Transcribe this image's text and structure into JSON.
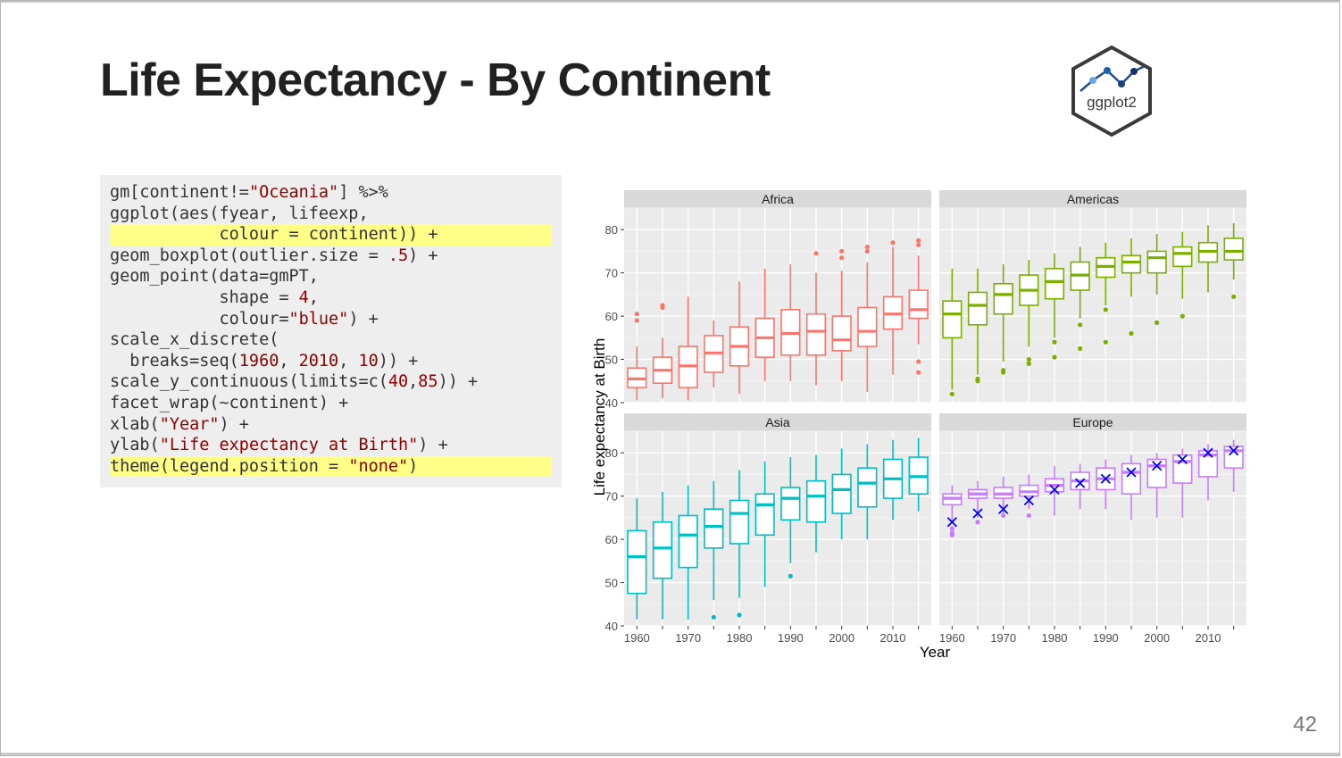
{
  "slide": {
    "title": "Life Expectancy - By Continent",
    "page_number": "42",
    "logo_text": "ggplot2"
  },
  "code": {
    "lines": [
      {
        "highlight": false,
        "tokens": [
          {
            "t": "gm[continent!="
          },
          {
            "t": "\"Oceania\"",
            "k": "str"
          },
          {
            "t": "] %>%"
          }
        ]
      },
      {
        "highlight": false,
        "tokens": [
          {
            "t": "ggplot(aes(fyear, lifeexp,"
          }
        ]
      },
      {
        "highlight": true,
        "tokens": [
          {
            "t": "           colour = continent)) +"
          }
        ]
      },
      {
        "highlight": false,
        "tokens": [
          {
            "t": "geom_boxplot(outlier.size = "
          },
          {
            "t": ".5",
            "k": "num"
          },
          {
            "t": ") +"
          }
        ]
      },
      {
        "highlight": false,
        "tokens": [
          {
            "t": "geom_point(data=gmPT,"
          }
        ]
      },
      {
        "highlight": false,
        "tokens": [
          {
            "t": "           shape = "
          },
          {
            "t": "4",
            "k": "num"
          },
          {
            "t": ","
          }
        ]
      },
      {
        "highlight": false,
        "tokens": [
          {
            "t": "           colour="
          },
          {
            "t": "\"blue\"",
            "k": "str"
          },
          {
            "t": ") +"
          }
        ]
      },
      {
        "highlight": false,
        "tokens": [
          {
            "t": "scale_x_discrete("
          }
        ]
      },
      {
        "highlight": false,
        "tokens": [
          {
            "t": "  breaks=seq("
          },
          {
            "t": "1960",
            "k": "num"
          },
          {
            "t": ", "
          },
          {
            "t": "2010",
            "k": "num"
          },
          {
            "t": ", "
          },
          {
            "t": "10",
            "k": "num"
          },
          {
            "t": ")) +"
          }
        ]
      },
      {
        "highlight": false,
        "tokens": [
          {
            "t": "scale_y_continuous(limits=c("
          },
          {
            "t": "40",
            "k": "num"
          },
          {
            "t": ","
          },
          {
            "t": "85",
            "k": "num"
          },
          {
            "t": ")) +"
          }
        ]
      },
      {
        "highlight": false,
        "tokens": [
          {
            "t": "facet_wrap(~continent) +"
          }
        ]
      },
      {
        "highlight": false,
        "tokens": [
          {
            "t": "xlab("
          },
          {
            "t": "\"Year\"",
            "k": "str"
          },
          {
            "t": ") +"
          }
        ]
      },
      {
        "highlight": false,
        "tokens": [
          {
            "t": "ylab("
          },
          {
            "t": "\"Life expectancy at Birth\"",
            "k": "str"
          },
          {
            "t": ") +"
          }
        ]
      },
      {
        "highlight": true,
        "tokens": [
          {
            "t": "theme(legend.position = "
          },
          {
            "t": "\"none\"",
            "k": "str"
          },
          {
            "t": ")"
          }
        ]
      }
    ]
  },
  "chart_data": {
    "type": "boxplot",
    "xlabel": "Year",
    "ylabel": "Life expectancy at Birth",
    "ylim": [
      40,
      85
    ],
    "y_ticks": [
      40,
      50,
      60,
      70,
      80
    ],
    "x_categories": [
      1960,
      1965,
      1970,
      1975,
      1980,
      1985,
      1990,
      1995,
      2000,
      2005,
      2010,
      2015
    ],
    "x_tick_labels": [
      "1960",
      "1970",
      "1980",
      "1990",
      "2000",
      "2010"
    ],
    "grid": true,
    "legend": "none",
    "panels": [
      {
        "name": "Africa",
        "color": "#F8766D",
        "boxes": [
          {
            "x": 1960,
            "min": 40.5,
            "q1": 43.5,
            "median": 45.5,
            "q3": 48,
            "max": 53
          },
          {
            "x": 1965,
            "min": 41,
            "q1": 44.5,
            "median": 47.5,
            "q3": 50.5,
            "max": 55
          },
          {
            "x": 1970,
            "min": 40.5,
            "q1": 43.5,
            "median": 48.5,
            "q3": 53,
            "max": 64.5
          },
          {
            "x": 1975,
            "min": 43.5,
            "q1": 47,
            "median": 51.5,
            "q3": 55.5,
            "max": 59
          },
          {
            "x": 1980,
            "min": 42,
            "q1": 48.5,
            "median": 53,
            "q3": 57.5,
            "max": 68
          },
          {
            "x": 1985,
            "min": 45,
            "q1": 50.5,
            "median": 55,
            "q3": 59.5,
            "max": 71
          },
          {
            "x": 1990,
            "min": 45,
            "q1": 51,
            "median": 56,
            "q3": 61.5,
            "max": 72
          },
          {
            "x": 1995,
            "min": 44,
            "q1": 51,
            "median": 56.5,
            "q3": 60.5,
            "max": 70
          },
          {
            "x": 2000,
            "min": 45,
            "q1": 52,
            "median": 54.5,
            "q3": 60,
            "max": 70.5
          },
          {
            "x": 2005,
            "min": 42.5,
            "q1": 53,
            "median": 56.5,
            "q3": 62,
            "max": 72.5
          },
          {
            "x": 2010,
            "min": 46.5,
            "q1": 57,
            "median": 60.5,
            "q3": 64.5,
            "max": 76
          },
          {
            "x": 2015,
            "min": 53.5,
            "q1": 59.5,
            "median": 61.5,
            "q3": 66,
            "max": 74
          }
        ],
        "outliers": [
          {
            "x": 1960,
            "y": 60.5
          },
          {
            "x": 1960,
            "y": 59
          },
          {
            "x": 1965,
            "y": 62.5
          },
          {
            "x": 1965,
            "y": 62
          },
          {
            "x": 1995,
            "y": 74.5
          },
          {
            "x": 2000,
            "y": 75
          },
          {
            "x": 2000,
            "y": 73.5
          },
          {
            "x": 2005,
            "y": 76
          },
          {
            "x": 2005,
            "y": 75
          },
          {
            "x": 2010,
            "y": 77
          },
          {
            "x": 2015,
            "y": 77.5
          },
          {
            "x": 2015,
            "y": 76.5
          },
          {
            "x": 2015,
            "y": 49.5
          },
          {
            "x": 2015,
            "y": 47
          }
        ],
        "markers": []
      },
      {
        "name": "Americas",
        "color": "#7CAE00",
        "boxes": [
          {
            "x": 1960,
            "min": 43,
            "q1": 55,
            "median": 60.5,
            "q3": 63.5,
            "max": 71
          },
          {
            "x": 1965,
            "min": 46.5,
            "q1": 58,
            "median": 62.5,
            "q3": 65.5,
            "max": 71
          },
          {
            "x": 1970,
            "min": 49.5,
            "q1": 60.5,
            "median": 65,
            "q3": 67.5,
            "max": 72
          },
          {
            "x": 1975,
            "min": 53,
            "q1": 62.5,
            "median": 66,
            "q3": 69.5,
            "max": 73
          },
          {
            "x": 1980,
            "min": 55,
            "q1": 64,
            "median": 68,
            "q3": 71,
            "max": 74.5
          },
          {
            "x": 1985,
            "min": 59.5,
            "q1": 66,
            "median": 69.5,
            "q3": 72.5,
            "max": 76
          },
          {
            "x": 1990,
            "min": 62.5,
            "q1": 69,
            "median": 71.5,
            "q3": 73.5,
            "max": 77
          },
          {
            "x": 1995,
            "min": 64.5,
            "q1": 70,
            "median": 72.5,
            "q3": 74,
            "max": 78
          },
          {
            "x": 2000,
            "min": 65,
            "q1": 70,
            "median": 73.5,
            "q3": 75,
            "max": 79
          },
          {
            "x": 2005,
            "min": 64,
            "q1": 71.5,
            "median": 74.5,
            "q3": 76,
            "max": 79.5
          },
          {
            "x": 2010,
            "min": 65.5,
            "q1": 72.5,
            "median": 75,
            "q3": 77,
            "max": 81
          },
          {
            "x": 2015,
            "min": 68.5,
            "q1": 73,
            "median": 75,
            "q3": 78,
            "max": 81.5
          }
        ],
        "outliers": [
          {
            "x": 1960,
            "y": 42
          },
          {
            "x": 1965,
            "y": 45.5
          },
          {
            "x": 1965,
            "y": 45
          },
          {
            "x": 1970,
            "y": 47.5
          },
          {
            "x": 1970,
            "y": 47
          },
          {
            "x": 1975,
            "y": 50
          },
          {
            "x": 1975,
            "y": 49
          },
          {
            "x": 1980,
            "y": 54
          },
          {
            "x": 1980,
            "y": 50.5
          },
          {
            "x": 1985,
            "y": 58
          },
          {
            "x": 1985,
            "y": 52.5
          },
          {
            "x": 1990,
            "y": 61.5
          },
          {
            "x": 1990,
            "y": 54
          },
          {
            "x": 1995,
            "y": 56
          },
          {
            "x": 2000,
            "y": 58.5
          },
          {
            "x": 2005,
            "y": 60
          },
          {
            "x": 2015,
            "y": 64.5
          }
        ],
        "markers": []
      },
      {
        "name": "Asia",
        "color": "#00BFC4",
        "boxes": [
          {
            "x": 1960,
            "min": 41.5,
            "q1": 47.5,
            "median": 56,
            "q3": 62,
            "max": 69.5
          },
          {
            "x": 1965,
            "min": 41.5,
            "q1": 51,
            "median": 58,
            "q3": 64,
            "max": 71
          },
          {
            "x": 1970,
            "min": 41.5,
            "q1": 53.5,
            "median": 61,
            "q3": 65.5,
            "max": 72.5
          },
          {
            "x": 1975,
            "min": 46,
            "q1": 58,
            "median": 63,
            "q3": 67,
            "max": 73.5
          },
          {
            "x": 1980,
            "min": 46.5,
            "q1": 59,
            "median": 66,
            "q3": 69,
            "max": 76
          },
          {
            "x": 1985,
            "min": 49,
            "q1": 61,
            "median": 68,
            "q3": 70.5,
            "max": 78
          },
          {
            "x": 1990,
            "min": 54.5,
            "q1": 64.5,
            "median": 69.5,
            "q3": 72,
            "max": 79
          },
          {
            "x": 1995,
            "min": 57,
            "q1": 64,
            "median": 70,
            "q3": 73.5,
            "max": 79.5
          },
          {
            "x": 2000,
            "min": 60,
            "q1": 66,
            "median": 71.5,
            "q3": 75,
            "max": 81
          },
          {
            "x": 2005,
            "min": 60,
            "q1": 67.5,
            "median": 73,
            "q3": 76.5,
            "max": 82
          },
          {
            "x": 2010,
            "min": 64.5,
            "q1": 69.5,
            "median": 74,
            "q3": 78.5,
            "max": 83
          },
          {
            "x": 2015,
            "min": 66.5,
            "q1": 70.5,
            "median": 74.5,
            "q3": 79,
            "max": 83.5
          }
        ],
        "outliers": [
          {
            "x": 1975,
            "y": 42
          },
          {
            "x": 1980,
            "y": 42.5
          },
          {
            "x": 1990,
            "y": 51.5
          }
        ],
        "markers": []
      },
      {
        "name": "Europe",
        "color": "#C77CFF",
        "boxes": [
          {
            "x": 1960,
            "min": 64,
            "q1": 68,
            "median": 69.5,
            "q3": 70.5,
            "max": 72.5
          },
          {
            "x": 1965,
            "min": 65,
            "q1": 69.5,
            "median": 70.5,
            "q3": 71.5,
            "max": 73.5
          },
          {
            "x": 1970,
            "min": 66,
            "q1": 69.5,
            "median": 70.5,
            "q3": 72,
            "max": 74.5
          },
          {
            "x": 1975,
            "min": 67,
            "q1": 70,
            "median": 71,
            "q3": 72.5,
            "max": 75
          },
          {
            "x": 1980,
            "min": 65.5,
            "q1": 71,
            "median": 72.5,
            "q3": 74,
            "max": 77
          },
          {
            "x": 1985,
            "min": 67,
            "q1": 71.5,
            "median": 73.5,
            "q3": 75.5,
            "max": 77.5
          },
          {
            "x": 1990,
            "min": 67,
            "q1": 71.5,
            "median": 74,
            "q3": 76.5,
            "max": 78.5
          },
          {
            "x": 1995,
            "min": 64.5,
            "q1": 70.5,
            "median": 75.5,
            "q3": 77.5,
            "max": 79.5
          },
          {
            "x": 2000,
            "min": 65,
            "q1": 72,
            "median": 77,
            "q3": 78.5,
            "max": 80
          },
          {
            "x": 2005,
            "min": 65,
            "q1": 73,
            "median": 78,
            "q3": 79.5,
            "max": 81
          },
          {
            "x": 2010,
            "min": 69,
            "q1": 74.5,
            "median": 79.5,
            "q3": 80.5,
            "max": 82
          },
          {
            "x": 2015,
            "min": 71,
            "q1": 76.5,
            "median": 80.5,
            "q3": 81.5,
            "max": 83
          }
        ],
        "outliers": [
          {
            "x": 1960,
            "y": 62.5
          },
          {
            "x": 1960,
            "y": 61.5
          },
          {
            "x": 1960,
            "y": 61
          },
          {
            "x": 1965,
            "y": 64
          },
          {
            "x": 1970,
            "y": 65.5
          },
          {
            "x": 1975,
            "y": 65.5
          }
        ],
        "markers": [
          {
            "x": 1960,
            "y": 64
          },
          {
            "x": 1965,
            "y": 66
          },
          {
            "x": 1970,
            "y": 67
          },
          {
            "x": 1975,
            "y": 69
          },
          {
            "x": 1980,
            "y": 71.5
          },
          {
            "x": 1985,
            "y": 73
          },
          {
            "x": 1990,
            "y": 74
          },
          {
            "x": 1995,
            "y": 75.5
          },
          {
            "x": 2000,
            "y": 77
          },
          {
            "x": 2005,
            "y": 78.5
          },
          {
            "x": 2010,
            "y": 80
          },
          {
            "x": 2015,
            "y": 80.5
          }
        ],
        "marker_color": "#0000FF"
      }
    ]
  }
}
